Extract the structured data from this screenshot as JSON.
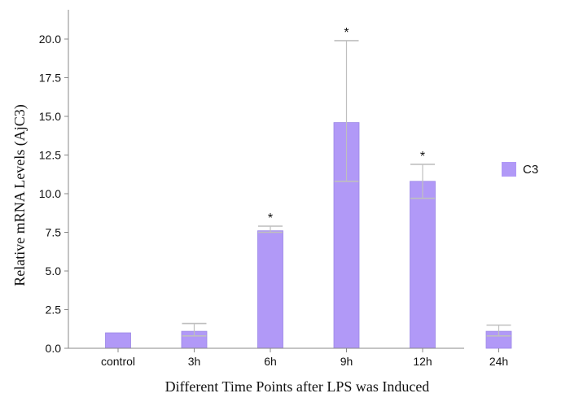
{
  "chart_data": {
    "type": "bar",
    "title": "",
    "xlabel": "Different Time Points after LPS was Induced",
    "ylabel": "Relative mRNA Levels (AjC3)",
    "categories": [
      "control",
      "3h",
      "6h",
      "9h",
      "12h",
      "24h"
    ],
    "series": [
      {
        "name": "C3",
        "values": [
          1.0,
          1.1,
          7.6,
          14.6,
          10.8,
          1.1
        ],
        "error_upper": [
          1.0,
          1.6,
          7.9,
          19.9,
          11.9,
          1.5
        ],
        "error_lower": [
          1.0,
          0.8,
          7.5,
          10.8,
          9.7,
          0.8
        ],
        "significant": [
          false,
          false,
          true,
          true,
          true,
          false
        ],
        "color": "#b199f7"
      }
    ],
    "significance_marker": "*",
    "yticks": [
      "0.0",
      "2.5",
      "5.0",
      "7.5",
      "10.0",
      "12.5",
      "15.0",
      "17.5",
      "20.0"
    ],
    "ylim": [
      0,
      21.5
    ],
    "legend_position": "right",
    "grid": false
  }
}
